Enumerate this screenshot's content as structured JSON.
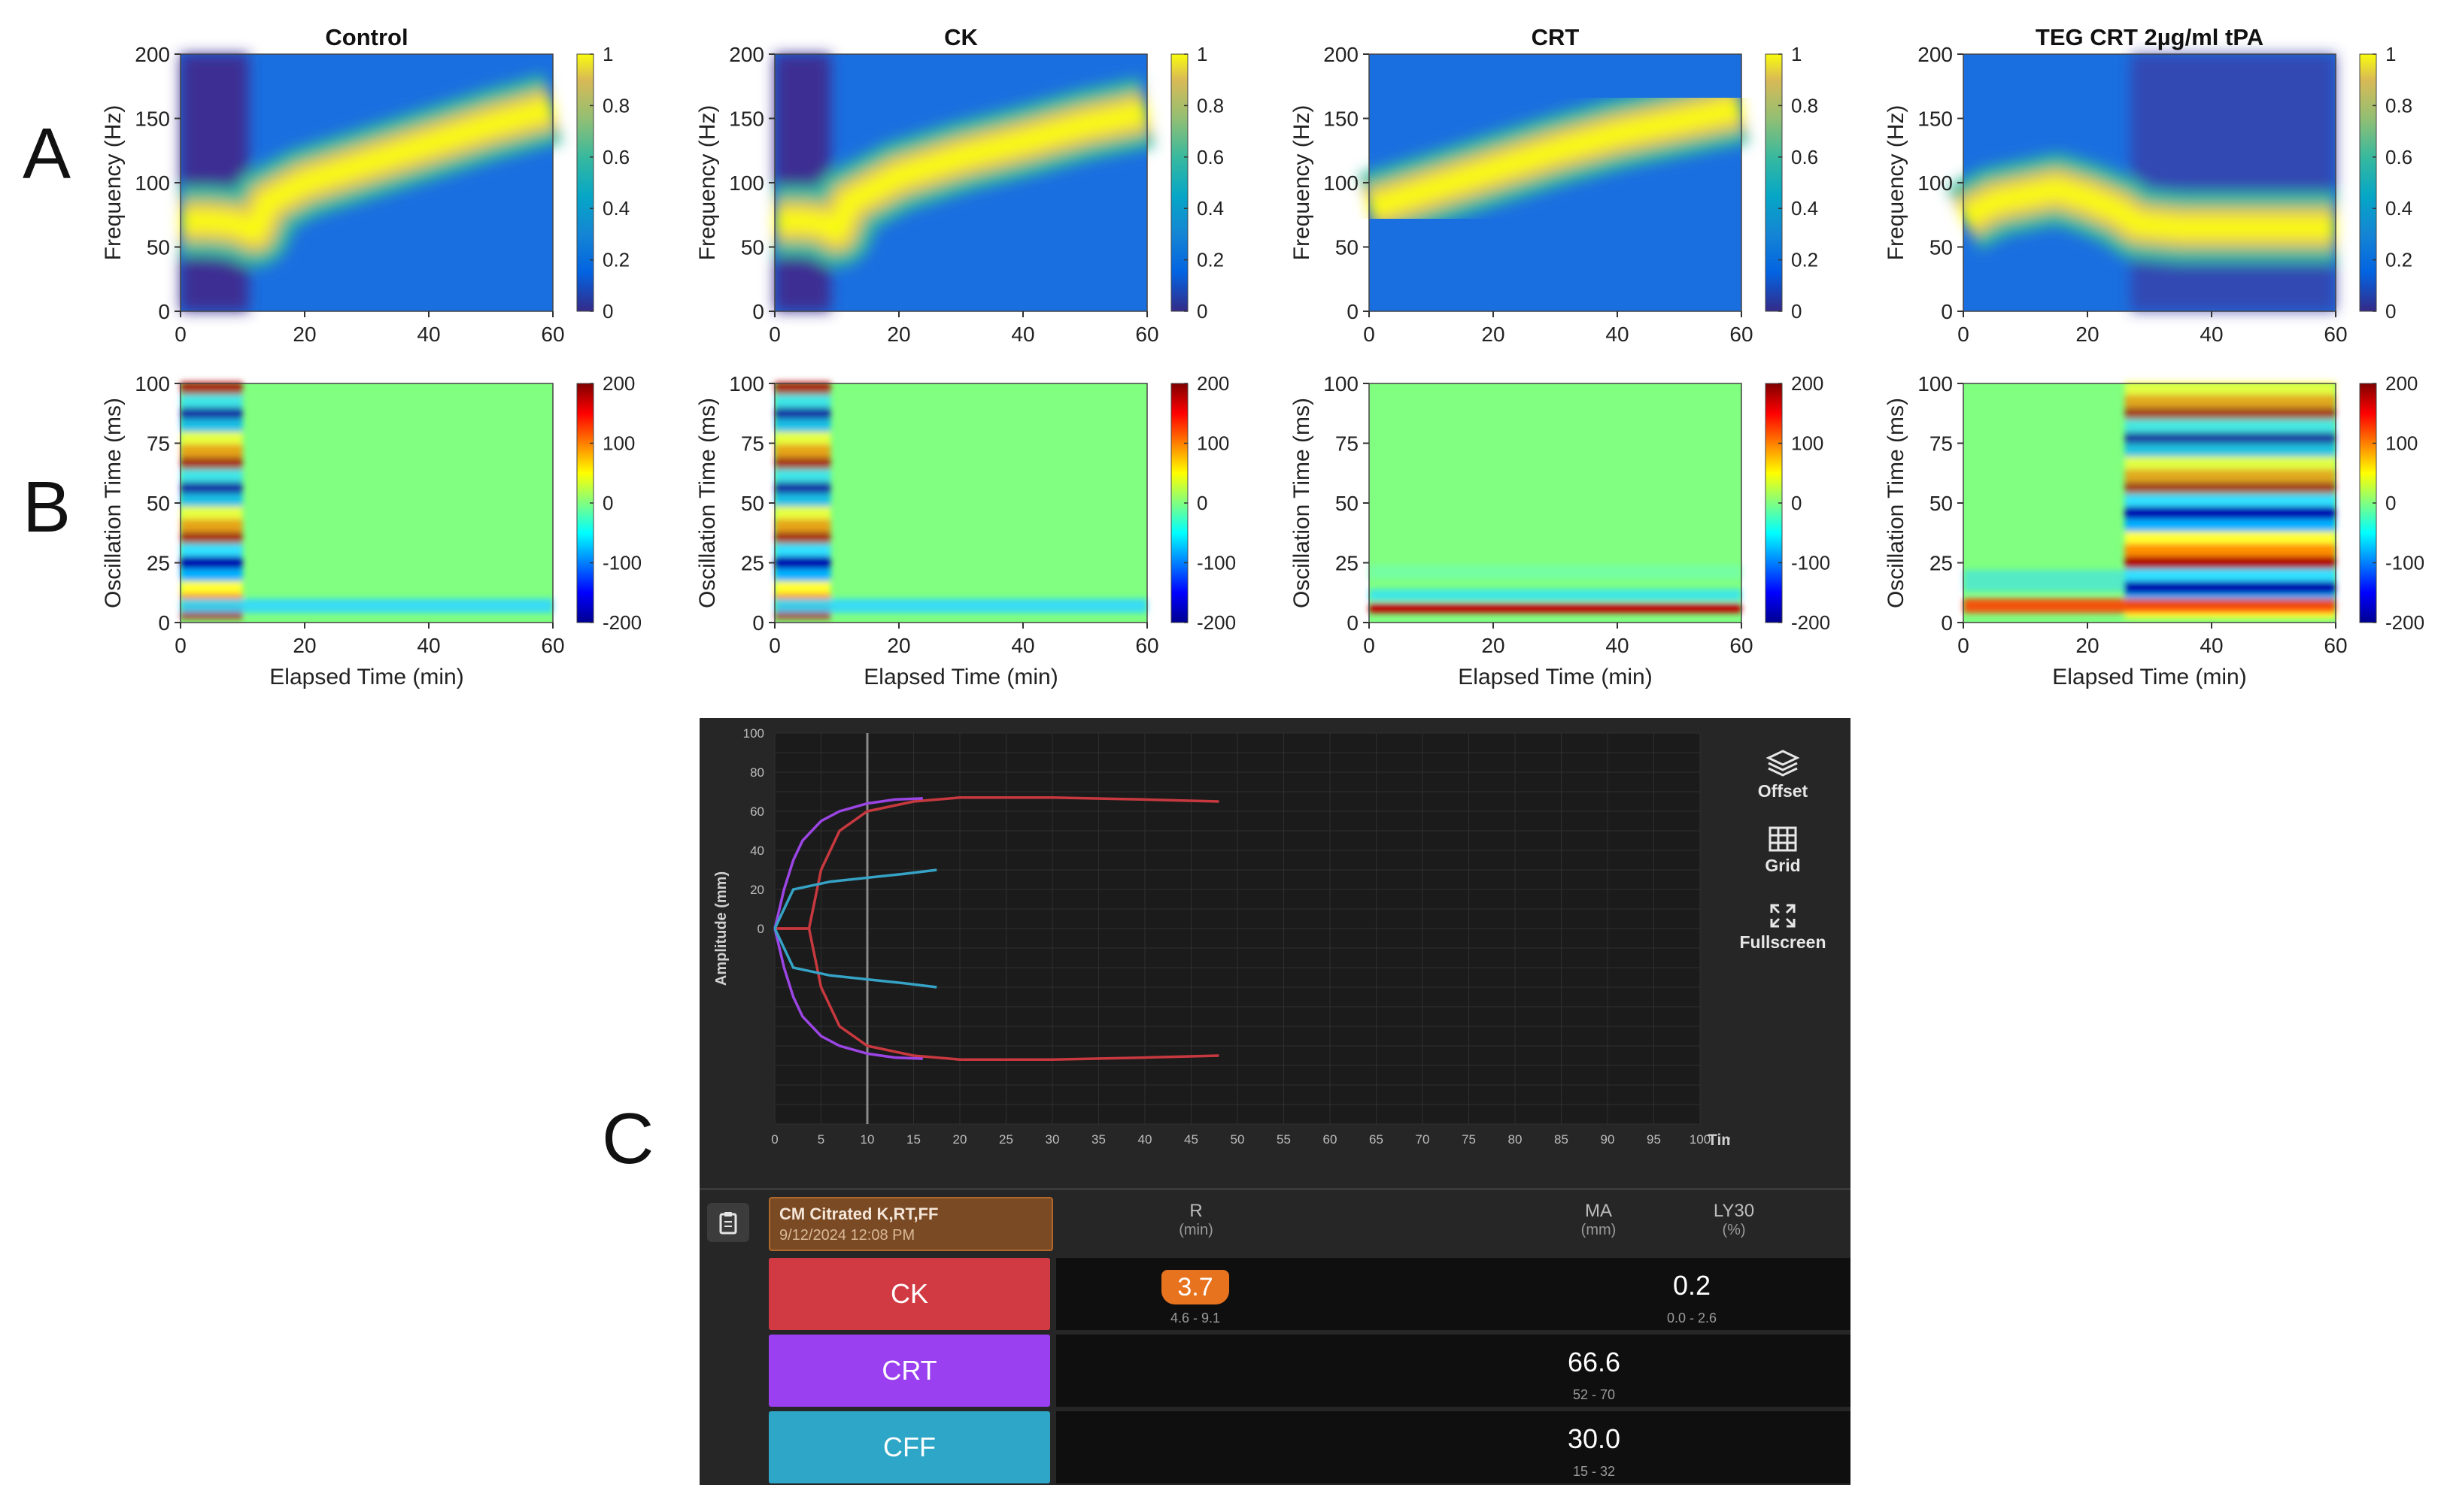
{
  "panels": {
    "a": "A",
    "b": "B",
    "c": "C"
  },
  "chart_data": [
    {
      "type": "heatmap",
      "title": "Control",
      "xlabel": "",
      "ylabel": "Frequency (Hz)",
      "xlim": [
        0,
        60
      ],
      "ylim": [
        0,
        200
      ],
      "xticks": [
        "0",
        "20",
        "40",
        "60"
      ],
      "yticks": [
        "0",
        "50",
        "100",
        "150",
        "200"
      ],
      "colorbar": {
        "range": [
          0,
          1
        ],
        "ticks": [
          "0",
          "0.2",
          "0.4",
          "0.6",
          "0.8",
          "1"
        ]
      },
      "ridge": {
        "x": [
          0,
          5,
          9,
          12,
          14,
          20,
          30,
          40,
          50,
          60
        ],
        "y": [
          70,
          70,
          68,
          62,
          85,
          100,
          115,
          130,
          145,
          158
        ]
      }
    },
    {
      "type": "heatmap",
      "title": "CK",
      "xlabel": "",
      "ylabel": "Frequency (Hz)",
      "xlim": [
        0,
        60
      ],
      "ylim": [
        0,
        200
      ],
      "xticks": [
        "0",
        "20",
        "40",
        "60"
      ],
      "yticks": [
        "0",
        "50",
        "100",
        "150",
        "200"
      ],
      "colorbar": {
        "range": [
          0,
          1
        ],
        "ticks": [
          "0",
          "0.2",
          "0.4",
          "0.6",
          "0.8",
          "1"
        ]
      },
      "ridge": {
        "x": [
          0,
          5,
          8,
          10,
          12,
          20,
          30,
          40,
          50,
          60
        ],
        "y": [
          70,
          70,
          68,
          62,
          85,
          105,
          120,
          132,
          145,
          155
        ]
      }
    },
    {
      "type": "heatmap",
      "title": "CRT",
      "xlabel": "",
      "ylabel": "Frequency (Hz)",
      "xlim": [
        0,
        60
      ],
      "ylim": [
        0,
        200
      ],
      "xticks": [
        "0",
        "20",
        "40",
        "60"
      ],
      "yticks": [
        "0",
        "50",
        "100",
        "150",
        "200"
      ],
      "colorbar": {
        "range": [
          0,
          1
        ],
        "ticks": [
          "0",
          "0.2",
          "0.4",
          "0.6",
          "0.8",
          "1"
        ]
      },
      "ridge": {
        "x": [
          0,
          10,
          20,
          30,
          40,
          50,
          60
        ],
        "y": [
          80,
          95,
          110,
          125,
          138,
          148,
          158
        ]
      }
    },
    {
      "type": "heatmap",
      "title": "TEG CRT 2µg/ml tPA",
      "xlabel": "",
      "ylabel": "Frequency (Hz)",
      "xlim": [
        0,
        60
      ],
      "ylim": [
        0,
        200
      ],
      "xticks": [
        "0",
        "20",
        "40",
        "60"
      ],
      "yticks": [
        "0",
        "50",
        "100",
        "150",
        "200"
      ],
      "colorbar": {
        "range": [
          0,
          1
        ],
        "ticks": [
          "0",
          "0.2",
          "0.4",
          "0.6",
          "0.8",
          "1"
        ]
      },
      "ridge": {
        "x": [
          0,
          5,
          10,
          15,
          20,
          25,
          28,
          35,
          45,
          60
        ],
        "y": [
          72,
          85,
          90,
          95,
          88,
          78,
          68,
          65,
          65,
          65
        ]
      }
    },
    {
      "type": "heatmap",
      "title": "",
      "xlabel": "Elapsed Time (min)",
      "ylabel": "Oscillation Time (ms)",
      "xlim": [
        0,
        60
      ],
      "ylim": [
        0,
        100
      ],
      "xticks": [
        "0",
        "20",
        "40",
        "60"
      ],
      "yticks": [
        "0",
        "25",
        "50",
        "75",
        "100"
      ],
      "colorbar": {
        "range": [
          -200,
          200
        ],
        "ticks": [
          "-200",
          "-100",
          "0",
          "100",
          "200"
        ]
      },
      "oscillation_until_min": 10
    },
    {
      "type": "heatmap",
      "title": "",
      "xlabel": "Elapsed Time (min)",
      "ylabel": "Oscillation Time (ms)",
      "xlim": [
        0,
        60
      ],
      "ylim": [
        0,
        100
      ],
      "xticks": [
        "0",
        "20",
        "40",
        "60"
      ],
      "yticks": [
        "0",
        "25",
        "50",
        "75",
        "100"
      ],
      "colorbar": {
        "range": [
          -200,
          200
        ],
        "ticks": [
          "-200",
          "-100",
          "0",
          "100",
          "200"
        ]
      },
      "oscillation_until_min": 9
    },
    {
      "type": "heatmap",
      "title": "",
      "xlabel": "Elapsed Time (min)",
      "ylabel": "Oscillation Time (ms)",
      "xlim": [
        0,
        60
      ],
      "ylim": [
        0,
        100
      ],
      "xticks": [
        "0",
        "20",
        "40",
        "60"
      ],
      "yticks": [
        "0",
        "25",
        "50",
        "75",
        "100"
      ],
      "colorbar": {
        "range": [
          -200,
          200
        ],
        "ticks": [
          "-200",
          "-100",
          "0",
          "100",
          "200"
        ]
      },
      "oscillation_until_min": 0
    },
    {
      "type": "heatmap",
      "title": "",
      "xlabel": "Elapsed Time (min)",
      "ylabel": "Oscillation Time (ms)",
      "xlim": [
        0,
        60
      ],
      "ylim": [
        0,
        100
      ],
      "xticks": [
        "0",
        "20",
        "40",
        "60"
      ],
      "yticks": [
        "0",
        "25",
        "50",
        "75",
        "100"
      ],
      "colorbar": {
        "range": [
          -200,
          200
        ],
        "ticks": [
          "-200",
          "-100",
          "0",
          "100",
          "200"
        ]
      },
      "oscillation_from_min": 26
    },
    {
      "type": "line",
      "title": "",
      "xlabel": "Time (min)",
      "ylabel": "Amplitude (mm)",
      "xlim": [
        0,
        100
      ],
      "ylim": [
        -100,
        100
      ],
      "xticks": [
        "0",
        "5",
        "10",
        "15",
        "20",
        "25",
        "30",
        "35",
        "40",
        "45",
        "50",
        "55",
        "60",
        "65",
        "70",
        "75",
        "80",
        "85",
        "90",
        "95",
        "100"
      ],
      "yticks": [
        "0",
        "20",
        "40",
        "60",
        "80",
        "100"
      ],
      "cursor_x": 10,
      "series": [
        {
          "name": "CK",
          "color": "#c8393f",
          "x": [
            0,
            2,
            3.7,
            5,
            7,
            10,
            15,
            20,
            30,
            40,
            48
          ],
          "y": [
            0,
            0,
            0,
            30,
            50,
            60,
            65,
            67,
            67,
            66,
            65
          ]
        },
        {
          "name": "CRT",
          "color": "#9b45e4",
          "x": [
            0,
            1,
            2,
            3,
            5,
            7,
            10,
            13,
            16
          ],
          "y": [
            0,
            20,
            35,
            45,
            55,
            60,
            64,
            66,
            66.6
          ]
        },
        {
          "name": "CFF",
          "color": "#36a3c6",
          "x": [
            0,
            1,
            2,
            4,
            6,
            10,
            14,
            17.5
          ],
          "y": [
            0,
            10,
            20,
            22,
            24,
            26,
            28,
            30
          ]
        }
      ]
    }
  ],
  "teg": {
    "tools": {
      "offset": "Offset",
      "grid": "Grid",
      "fullscreen": "Fullscreen"
    },
    "header": {
      "title": "CM Citrated K,RT,FF",
      "date": "9/12/2024 12:08 PM"
    },
    "columns": {
      "r": "R",
      "r_unit": "(min)",
      "ma": "MA",
      "ma_unit": "(mm)",
      "ly": "LY30",
      "ly_unit": "(%)"
    },
    "rows": [
      {
        "label": "CK",
        "color": "#d13a43",
        "r": "3.7",
        "r_range": "4.6 - 9.1",
        "ly": "0.2",
        "ly_range": "0.0 - 2.6"
      },
      {
        "label": "CRT",
        "color": "#9a40f0",
        "ma": "66.6",
        "ma_range": "52 - 70"
      },
      {
        "label": "CFF",
        "color": "#2ea6c7",
        "ma": "30.0",
        "ma_range": "15 - 32"
      }
    ]
  }
}
